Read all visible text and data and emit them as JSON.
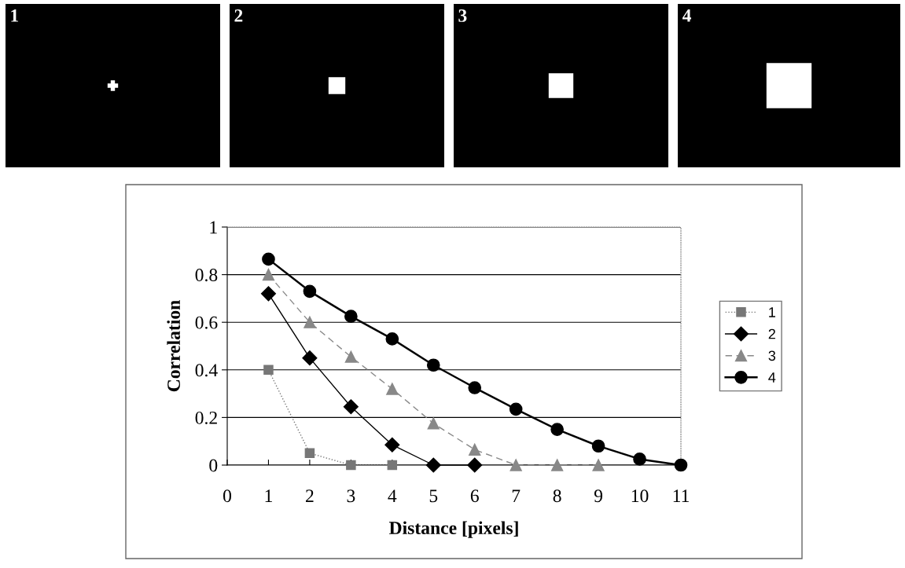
{
  "chart_data": {
    "type": "line",
    "xlabel": "Distance [pixels]",
    "ylabel": "Correlation",
    "annotations": [
      "1",
      "2",
      "3",
      "4"
    ],
    "xlim": [
      0,
      11
    ],
    "xticks": [
      0,
      1,
      2,
      3,
      4,
      5,
      6,
      7,
      8,
      9,
      10,
      11
    ],
    "ylim": [
      0,
      1
    ],
    "yticks": [
      0,
      0.2,
      0.4,
      0.6,
      0.8,
      1
    ],
    "grid": "y",
    "legend": "right",
    "series": [
      {
        "name": "1",
        "color": "#777777",
        "marker": "square",
        "line_style": "dotted",
        "x": [
          1,
          2,
          3,
          4
        ],
        "values": [
          0.4,
          0.05,
          0,
          0
        ]
      },
      {
        "name": "2",
        "color": "#000000",
        "marker": "diamond",
        "line_style": "solid",
        "x": [
          1,
          2,
          3,
          4,
          5,
          6
        ],
        "values": [
          0.72,
          0.45,
          0.245,
          0.085,
          0,
          0
        ]
      },
      {
        "name": "3",
        "color": "#888888",
        "marker": "triangle",
        "line_style": "dashed",
        "x": [
          1,
          2,
          3,
          4,
          5,
          6,
          7,
          8,
          9
        ],
        "values": [
          0.8,
          0.6,
          0.455,
          0.32,
          0.175,
          0.065,
          0,
          0,
          0
        ]
      },
      {
        "name": "4",
        "color": "#000000",
        "marker": "circle",
        "line_style": "solid",
        "x": [
          1,
          2,
          3,
          4,
          5,
          6,
          7,
          8,
          9,
          10,
          11
        ],
        "values": [
          0.865,
          0.73,
          0.625,
          0.53,
          0.42,
          0.325,
          0.235,
          0.15,
          0.08,
          0.025,
          0
        ]
      }
    ]
  }
}
